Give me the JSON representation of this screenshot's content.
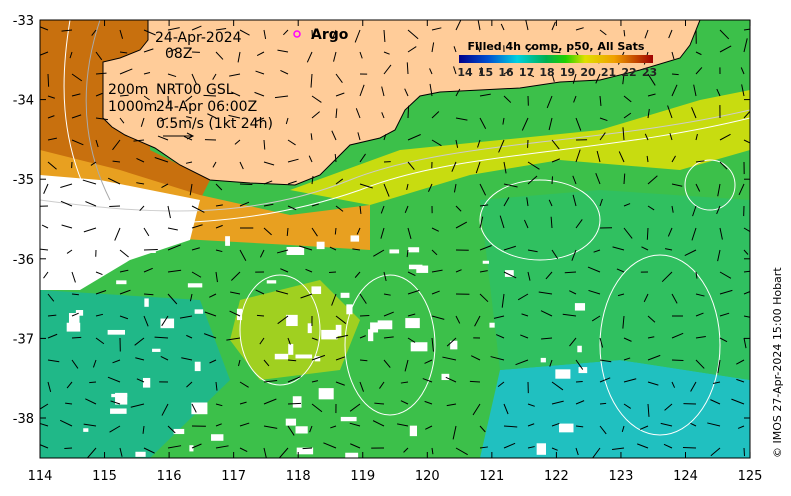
{
  "map": {
    "date": "24-Apr-2024",
    "time": "08Z",
    "argo_label": "Argo",
    "contour_200": "200m",
    "contour_1000": "1000m",
    "current_source": "NRT00 GSL",
    "current_time": "24-Apr 06:00Z",
    "scale_label": "0.5m/s (1kt 24h)",
    "credit": "© IMOS 27-Apr-2024 15:00 Hobart"
  },
  "colorbar": {
    "title": "Filled 4h comp, p50, All Sats",
    "ticks": [
      "14",
      "15",
      "16",
      "17",
      "18",
      "19",
      "20",
      "21",
      "22",
      "23"
    ],
    "colors": [
      "#00008b",
      "#0030c0",
      "#0090e0",
      "#00d0d0",
      "#00b060",
      "#10d010",
      "#c0e000",
      "#f0c000",
      "#e07000",
      "#a00000"
    ]
  },
  "axes": {
    "x_ticks": [
      "114",
      "115",
      "116",
      "117",
      "118",
      "119",
      "120",
      "121",
      "122",
      "123",
      "124",
      "125"
    ],
    "y_ticks": [
      "-33",
      "-34",
      "-35",
      "-36",
      "-37",
      "-38"
    ]
  },
  "colors": {
    "land": "#FFCC99",
    "argo": "#ff00ff"
  }
}
